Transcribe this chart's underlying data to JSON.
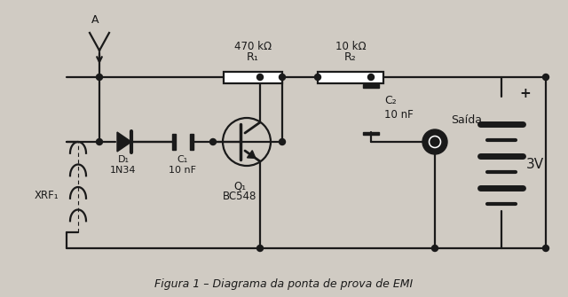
{
  "title": "Figura 1 – Diagrama da ponta de prova de EMI",
  "bg_color": "#d0cbc3",
  "line_color": "#1a1a1a",
  "components": {
    "R1_label": "R₁",
    "R1_value": "470 kΩ",
    "R2_label": "R₂",
    "R2_value": "10 kΩ",
    "C1_label": "C₁",
    "C1_value": "10 nF",
    "C2_label": "C₂",
    "C2_value": "10 nF",
    "D1_label": "D₁",
    "D1_value": "1N34",
    "Q1_label": "Q₁",
    "Q1_value": "BC548",
    "XRF_label": "XRF₁",
    "battery_value": "3V",
    "output_label": "Saída",
    "antenna_label": "A"
  }
}
